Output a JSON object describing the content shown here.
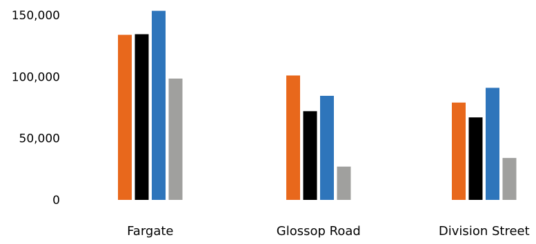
{
  "chart_data": {
    "type": "bar",
    "title": "",
    "xlabel": "",
    "ylabel": "",
    "categories": [
      "Fargate",
      "Glossop Road",
      "Division Street"
    ],
    "series": [
      {
        "color": "#E8681C",
        "values": [
          134000,
          101000,
          79000
        ]
      },
      {
        "color": "#000000",
        "values": [
          134500,
          72000,
          67000
        ]
      },
      {
        "color": "#2E75BB",
        "values": [
          153500,
          84500,
          91000
        ]
      },
      {
        "color": "#A0A09E",
        "values": [
          98500,
          27000,
          34000
        ]
      }
    ],
    "ylim": [
      0,
      155000
    ],
    "yticks": [
      0,
      50000,
      100000,
      150000
    ],
    "ytick_labels": [
      "0",
      "50,000",
      "100,000",
      "150,000"
    ],
    "grid": false,
    "legend": "none"
  }
}
